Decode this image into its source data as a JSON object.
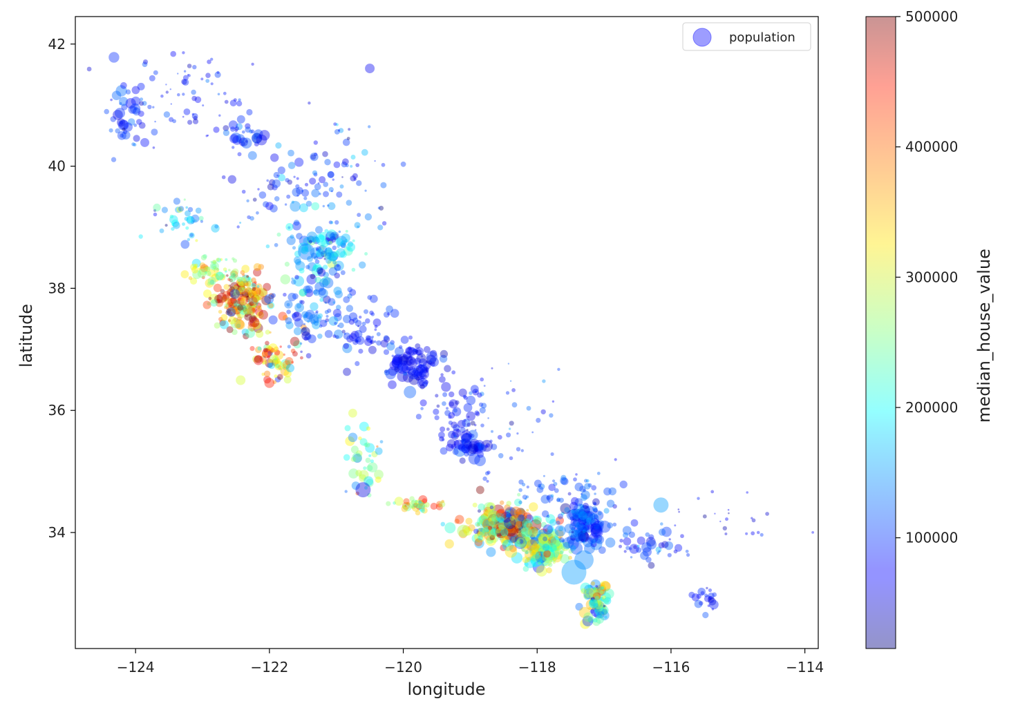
{
  "chart_data": {
    "type": "scatter",
    "xlabel": "longitude",
    "ylabel": "latitude",
    "xlim": [
      -124.9,
      -113.8
    ],
    "ylim": [
      32.1,
      42.45
    ],
    "xticks": [
      -124,
      -122,
      -120,
      -118,
      -116,
      -114
    ],
    "xtick_labels": [
      "−124",
      "−122",
      "−120",
      "−118",
      "−116",
      "−114"
    ],
    "yticks": [
      34,
      36,
      38,
      40,
      42
    ],
    "ytick_labels": [
      "34",
      "36",
      "38",
      "40",
      "42"
    ],
    "grid": false,
    "legend": {
      "position": "top-right",
      "entries": [
        "population"
      ],
      "marker_color": "#3b3bff"
    },
    "colorbar": {
      "label": "median_house_value",
      "colormap": "jet",
      "range": [
        14999,
        500001
      ],
      "ticks": [
        100000,
        200000,
        300000,
        400000,
        500000
      ],
      "tick_labels": [
        "100000",
        "200000",
        "300000",
        "400000",
        "500000"
      ]
    },
    "marker_size_encodes": "population",
    "marker_color_encodes": "median_house_value",
    "alpha": 0.4,
    "regions": [
      {
        "lon": -124.1,
        "lat": 40.8,
        "spread_lon": 0.25,
        "spread_lat": 0.6,
        "n": 40,
        "value_mean": 95000,
        "value_sd": 25000,
        "size_mean": 10
      },
      {
        "lon": -123.2,
        "lat": 41.2,
        "spread_lon": 1.1,
        "spread_lat": 0.7,
        "n": 70,
        "value_mean": 85000,
        "value_sd": 20000,
        "size_mean": 6
      },
      {
        "lon": -122.4,
        "lat": 40.5,
        "spread_lon": 0.3,
        "spread_lat": 0.3,
        "n": 30,
        "value_mean": 95000,
        "value_sd": 20000,
        "size_mean": 10
      },
      {
        "lon": -121.6,
        "lat": 39.7,
        "spread_lon": 0.8,
        "spread_lat": 0.6,
        "n": 70,
        "value_mean": 100000,
        "value_sd": 30000,
        "size_mean": 8
      },
      {
        "lon": -120.7,
        "lat": 40.0,
        "spread_lon": 0.7,
        "spread_lat": 0.9,
        "n": 40,
        "value_mean": 95000,
        "value_sd": 30000,
        "size_mean": 6
      },
      {
        "lon": -123.3,
        "lat": 39.1,
        "spread_lon": 0.45,
        "spread_lat": 0.4,
        "n": 40,
        "value_mean": 180000,
        "value_sd": 60000,
        "size_mean": 8
      },
      {
        "lon": -121.2,
        "lat": 38.6,
        "spread_lon": 0.5,
        "spread_lat": 0.45,
        "n": 120,
        "value_mean": 150000,
        "value_sd": 50000,
        "size_mean": 10
      },
      {
        "lon": -122.4,
        "lat": 37.8,
        "spread_lon": 0.35,
        "spread_lat": 0.45,
        "n": 200,
        "value_mean": 380000,
        "value_sd": 110000,
        "size_mean": 9
      },
      {
        "lon": -122.8,
        "lat": 38.3,
        "spread_lon": 0.4,
        "spread_lat": 0.25,
        "n": 60,
        "value_mean": 290000,
        "value_sd": 60000,
        "size_mean": 8
      },
      {
        "lon": -121.9,
        "lat": 36.9,
        "spread_lon": 0.3,
        "spread_lat": 0.35,
        "n": 70,
        "value_mean": 330000,
        "value_sd": 100000,
        "size_mean": 9
      },
      {
        "lon": -121.3,
        "lat": 37.6,
        "spread_lon": 0.5,
        "spread_lat": 0.5,
        "n": 90,
        "value_mean": 120000,
        "value_sd": 35000,
        "size_mean": 9
      },
      {
        "lon": -120.6,
        "lat": 37.3,
        "spread_lon": 0.5,
        "spread_lat": 0.4,
        "n": 60,
        "value_mean": 90000,
        "value_sd": 20000,
        "size_mean": 8
      },
      {
        "lon": -119.8,
        "lat": 36.7,
        "spread_lon": 0.35,
        "spread_lat": 0.35,
        "n": 90,
        "value_mean": 80000,
        "value_sd": 20000,
        "size_mean": 10
      },
      {
        "lon": -119.2,
        "lat": 35.9,
        "spread_lon": 0.35,
        "spread_lat": 0.5,
        "n": 60,
        "value_mean": 80000,
        "value_sd": 20000,
        "size_mean": 9
      },
      {
        "lon": -119.0,
        "lat": 35.4,
        "spread_lon": 0.25,
        "spread_lat": 0.2,
        "n": 40,
        "value_mean": 90000,
        "value_sd": 20000,
        "size_mean": 11
      },
      {
        "lon": -120.6,
        "lat": 35.2,
        "spread_lon": 0.25,
        "spread_lat": 0.5,
        "n": 40,
        "value_mean": 230000,
        "value_sd": 60000,
        "size_mean": 9
      },
      {
        "lon": -119.8,
        "lat": 34.45,
        "spread_lon": 0.35,
        "spread_lat": 0.08,
        "n": 40,
        "value_mean": 330000,
        "value_sd": 80000,
        "size_mean": 8
      },
      {
        "lon": -118.5,
        "lat": 34.1,
        "spread_lon": 0.55,
        "spread_lat": 0.3,
        "n": 240,
        "value_mean": 300000,
        "value_sd": 130000,
        "size_mean": 11
      },
      {
        "lon": -117.9,
        "lat": 33.75,
        "spread_lon": 0.35,
        "spread_lat": 0.25,
        "n": 150,
        "value_mean": 240000,
        "value_sd": 80000,
        "size_mean": 11
      },
      {
        "lon": -117.3,
        "lat": 34.1,
        "spread_lon": 0.35,
        "spread_lat": 0.3,
        "n": 120,
        "value_mean": 110000,
        "value_sd": 30000,
        "size_mean": 11
      },
      {
        "lon": -117.1,
        "lat": 32.85,
        "spread_lon": 0.15,
        "spread_lat": 0.3,
        "n": 100,
        "value_mean": 230000,
        "value_sd": 90000,
        "size_mean": 10
      },
      {
        "lon": -117.6,
        "lat": 34.6,
        "spread_lon": 0.7,
        "spread_lat": 0.35,
        "n": 60,
        "value_mean": 110000,
        "value_sd": 25000,
        "size_mean": 8
      },
      {
        "lon": -116.4,
        "lat": 33.8,
        "spread_lon": 0.4,
        "spread_lat": 0.25,
        "n": 40,
        "value_mean": 100000,
        "value_sd": 30000,
        "size_mean": 9
      },
      {
        "lon": -115.5,
        "lat": 32.9,
        "spread_lon": 0.15,
        "spread_lat": 0.2,
        "n": 20,
        "value_mean": 80000,
        "value_sd": 15000,
        "size_mean": 9
      },
      {
        "lon": -115.2,
        "lat": 34.3,
        "spread_lon": 0.9,
        "spread_lat": 0.7,
        "n": 25,
        "value_mean": 75000,
        "value_sd": 20000,
        "size_mean": 4
      },
      {
        "lon": -118.5,
        "lat": 35.8,
        "spread_lon": 0.9,
        "spread_lat": 0.8,
        "n": 50,
        "value_mean": 90000,
        "value_sd": 25000,
        "size_mean": 5
      }
    ],
    "highlights": [
      {
        "lon": -117.45,
        "lat": 33.35,
        "value": 150000,
        "size": 18
      },
      {
        "lon": -120.6,
        "lat": 34.7,
        "value": 60000,
        "size": 11
      },
      {
        "lon": -116.15,
        "lat": 34.45,
        "value": 150000,
        "size": 11
      },
      {
        "lon": -121.45,
        "lat": 38.6,
        "value": 130000,
        "size": 12
      },
      {
        "lon": -119.9,
        "lat": 36.3,
        "value": 120000,
        "size": 9
      },
      {
        "lon": -120.5,
        "lat": 41.6,
        "value": 70000,
        "size": 7
      },
      {
        "lon": -117.3,
        "lat": 33.55,
        "value": 140000,
        "size": 14
      }
    ]
  }
}
